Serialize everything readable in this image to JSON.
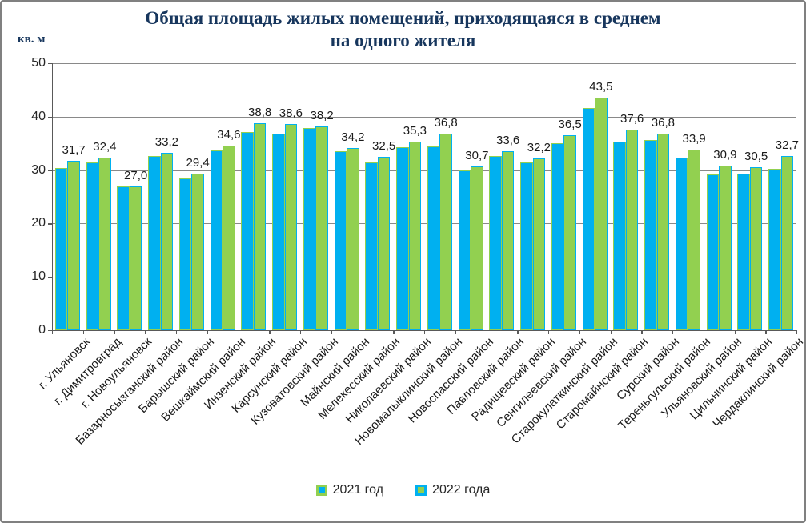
{
  "title": {
    "line1": "Общая площадь жилых помещений, приходящаяся в среднем",
    "line2": "на одного жителя"
  },
  "y_axis_unit_label": "кв. м",
  "colors": {
    "series_2021_fill": "#00B0F0",
    "series_2021_border": "#92D050",
    "series_2022_fill": "#92D050",
    "series_2022_border": "#00B0F0",
    "title_text": "#17365D",
    "gridline": "#898989",
    "axis": "#595959",
    "frame_border": "#808080"
  },
  "chart_data": {
    "type": "bar",
    "title": "Общая площадь жилых помещений, приходящаяся в среднем на одного жителя",
    "ylabel": "кв. м",
    "xlabel": "",
    "ylim": [
      0,
      50
    ],
    "yticks": [
      0,
      10,
      20,
      30,
      40,
      50
    ],
    "grid": true,
    "legend_position": "bottom",
    "categories": [
      "г. Ульяновск",
      "г. Димитровград",
      "г. Новоульяновск",
      "Базарносызганский район",
      "Барышский район",
      "Вешкаймский район",
      "Инзенский район",
      "Карсунский район",
      "Кузоватовский район",
      "Майнский район",
      "Мелекесский район",
      "Николаевский район",
      "Новомалыклинский район",
      "Новоспасский район",
      "Павловский район",
      "Радищевский район",
      "Сенгилеевский район",
      "Старокулаткинский район",
      "Старомайнский район",
      "Сурский район",
      "Тереньгульский район",
      "Ульяновский район",
      "Цильнинский район",
      "Чердаклинский район"
    ],
    "series": [
      {
        "name": "2021 год",
        "fill": "#00B0F0",
        "border": "#92D050",
        "values": [
          30.4,
          31.5,
          26.9,
          32.7,
          28.5,
          33.7,
          37.1,
          36.9,
          37.8,
          33.5,
          31.5,
          34.3,
          34.4,
          29.9,
          32.7,
          31.4,
          35.1,
          41.6,
          35.3,
          35.7,
          32.3,
          29.2,
          29.3,
          30.2
        ],
        "labels_shown": false
      },
      {
        "name": "2022 года",
        "fill": "#92D050",
        "border": "#00B0F0",
        "values": [
          31.7,
          32.4,
          27.0,
          33.2,
          29.4,
          34.6,
          38.8,
          38.6,
          38.2,
          34.2,
          32.5,
          35.3,
          36.8,
          30.7,
          33.6,
          32.2,
          36.5,
          43.5,
          37.6,
          36.8,
          33.9,
          30.9,
          30.5,
          32.7
        ],
        "labels_shown": true,
        "labels": [
          "31,7",
          "32,4",
          "27,0",
          "33,2",
          "29,4",
          "34,6",
          "38,8",
          "38,6",
          "38,2",
          "34,2",
          "32,5",
          "35,3",
          "36,8",
          "30,7",
          "33,6",
          "32,2",
          "36,5",
          "43,5",
          "37,6",
          "36,8",
          "33,9",
          "30,9",
          "30,5",
          "32,7"
        ]
      }
    ]
  },
  "legend": {
    "items": [
      {
        "label": "2021 год"
      },
      {
        "label": "2022 года"
      }
    ]
  }
}
